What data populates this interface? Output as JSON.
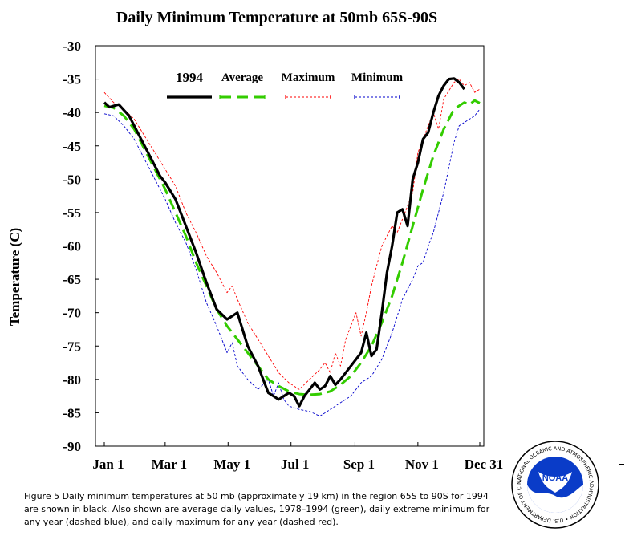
{
  "chart_data": {
    "type": "line",
    "title": "Daily Minimum Temperature at 50mb  65S-90S",
    "ylabel": "Temperature (C)",
    "xlabel": "",
    "ylim": [
      -90,
      -30
    ],
    "yticks": [
      -30,
      -35,
      -40,
      -45,
      -50,
      -55,
      -60,
      -65,
      -70,
      -75,
      -80,
      -85,
      -90
    ],
    "xlim": [
      1,
      365
    ],
    "xticks": [
      {
        "label": "Jan 1",
        "day": 1
      },
      {
        "label": "Mar 1",
        "day": 60
      },
      {
        "label": "May 1",
        "day": 121
      },
      {
        "label": "Jul 1",
        "day": 182
      },
      {
        "label": "Sep 1",
        "day": 244
      },
      {
        "label": "Nov 1",
        "day": 305
      },
      {
        "label": "Dec 31",
        "day": 365
      }
    ],
    "grid": false,
    "legend": "top",
    "series": [
      {
        "name": "1994",
        "color": "#000000",
        "style": "solid-thick",
        "x": [
          1,
          6,
          15,
          25,
          35,
          45,
          55,
          60,
          70,
          80,
          90,
          100,
          110,
          120,
          130,
          140,
          145,
          150,
          155,
          160,
          170,
          180,
          185,
          190,
          195,
          200,
          205,
          210,
          215,
          220,
          225,
          230,
          240,
          250,
          255,
          260,
          265,
          270,
          275,
          280,
          285,
          290,
          295,
          300,
          305,
          310,
          315,
          320,
          325,
          330,
          335,
          340,
          345,
          350
        ],
        "y": [
          -38.5,
          -39.2,
          -38.8,
          -40.5,
          -43.5,
          -46.5,
          -49.5,
          -50.5,
          -53,
          -57,
          -61,
          -65.5,
          -69.5,
          -71,
          -70,
          -75,
          -76.5,
          -78,
          -80,
          -82,
          -83,
          -82,
          -82.5,
          -84,
          -82.5,
          -81.5,
          -80.5,
          -81.5,
          -81,
          -79.5,
          -80.8,
          -80,
          -78,
          -76,
          -73,
          -76.5,
          -75.5,
          -70,
          -64,
          -60,
          -55,
          -54.5,
          -57,
          -50,
          -47.5,
          -44,
          -43,
          -40,
          -37.5,
          -36,
          -35,
          -34.9,
          -35.5,
          -36.5
        ]
      },
      {
        "name": "Average",
        "color": "#33cc00",
        "style": "dashed-thick",
        "x": [
          1,
          10,
          20,
          30,
          40,
          50,
          60,
          70,
          80,
          90,
          100,
          110,
          120,
          130,
          140,
          150,
          160,
          170,
          180,
          190,
          200,
          210,
          220,
          230,
          240,
          250,
          260,
          270,
          280,
          290,
          300,
          310,
          320,
          330,
          340,
          350,
          355,
          360,
          365
        ],
        "y": [
          -39,
          -39.3,
          -40.5,
          -42.5,
          -45.5,
          -48.5,
          -51.5,
          -55,
          -58.5,
          -62.5,
          -66,
          -69.5,
          -72,
          -74,
          -76,
          -78,
          -80,
          -81,
          -81.8,
          -82.2,
          -82.3,
          -82.2,
          -81.8,
          -80.8,
          -79.5,
          -77.5,
          -75,
          -71.5,
          -67.5,
          -62.5,
          -57,
          -51.5,
          -46.5,
          -42.5,
          -39.5,
          -38.5,
          -38.8,
          -38.2,
          -38.6
        ]
      },
      {
        "name": "Maximum",
        "color": "#ff0000",
        "style": "dashed-thin",
        "x": [
          1,
          10,
          20,
          30,
          40,
          50,
          60,
          70,
          80,
          90,
          100,
          110,
          120,
          125,
          130,
          140,
          150,
          160,
          170,
          180,
          190,
          200,
          210,
          215,
          220,
          225,
          230,
          235,
          240,
          245,
          250,
          255,
          260,
          265,
          270,
          280,
          285,
          290,
          295,
          300,
          305,
          310,
          315,
          320,
          325,
          330,
          340,
          345,
          350,
          355,
          360,
          365
        ],
        "y": [
          -37,
          -38.5,
          -39.5,
          -41,
          -43.5,
          -46,
          -48.5,
          -51,
          -55,
          -58,
          -61.5,
          -64,
          -67,
          -66,
          -68,
          -71.5,
          -74,
          -76.5,
          -79,
          -80.5,
          -81.5,
          -80,
          -78.5,
          -77.5,
          -79,
          -76,
          -78,
          -74,
          -72,
          -70,
          -73.5,
          -70,
          -66,
          -63,
          -60,
          -57,
          -58,
          -56,
          -54,
          -52,
          -46,
          -44,
          -42,
          -40,
          -42.5,
          -38,
          -35.5,
          -35,
          -36,
          -35.5,
          -37,
          -36.5
        ]
      },
      {
        "name": "Minimum",
        "color": "#0000cc",
        "style": "dashed-thin",
        "x": [
          1,
          10,
          20,
          30,
          40,
          50,
          60,
          70,
          80,
          90,
          100,
          110,
          120,
          125,
          130,
          140,
          150,
          160,
          165,
          170,
          175,
          180,
          190,
          200,
          210,
          220,
          230,
          240,
          250,
          260,
          270,
          280,
          290,
          300,
          305,
          310,
          315,
          320,
          330,
          340,
          345,
          350,
          355,
          360,
          365
        ],
        "y": [
          -40.2,
          -40.5,
          -42,
          -44,
          -47,
          -50,
          -53,
          -56.5,
          -59.5,
          -63.5,
          -68.5,
          -72,
          -76,
          -74.5,
          -78,
          -80,
          -81.5,
          -80,
          -82.5,
          -80.5,
          -83,
          -84,
          -84.5,
          -84.8,
          -85.5,
          -84.5,
          -83.5,
          -82.5,
          -80.5,
          -79.5,
          -77,
          -73,
          -68,
          -65,
          -63,
          -62.5,
          -60,
          -58,
          -52,
          -44.5,
          -42,
          -41.5,
          -41,
          -40.5,
          -39.5
        ]
      }
    ]
  },
  "legend": [
    {
      "label": "1994",
      "color": "#000000"
    },
    {
      "label": "Average",
      "color": "#33cc00"
    },
    {
      "label": "Maximum",
      "color": "#ff0000"
    },
    {
      "label": "Minimum",
      "color": "#0000cc"
    }
  ],
  "caption": "Figure 5     Daily minimum temperatures at 50 mb (approximately 19 km) in the region 65S to 90S for 1994 are shown in black. Also shown are average daily values, 1978–1994 (green), daily extreme minimum for any year (dashed blue), and daily maximum for any year (dashed red).",
  "logo": {
    "text": "NOAA",
    "ring_text": "NATIONAL OCEANIC AND ATMOSPHERIC ADMINISTRATION • U.S. DEPARTMENT OF COMMERCE •",
    "colors": {
      "blue": "#0a3cc8",
      "light": "#1e90ff",
      "white": "#ffffff"
    }
  }
}
